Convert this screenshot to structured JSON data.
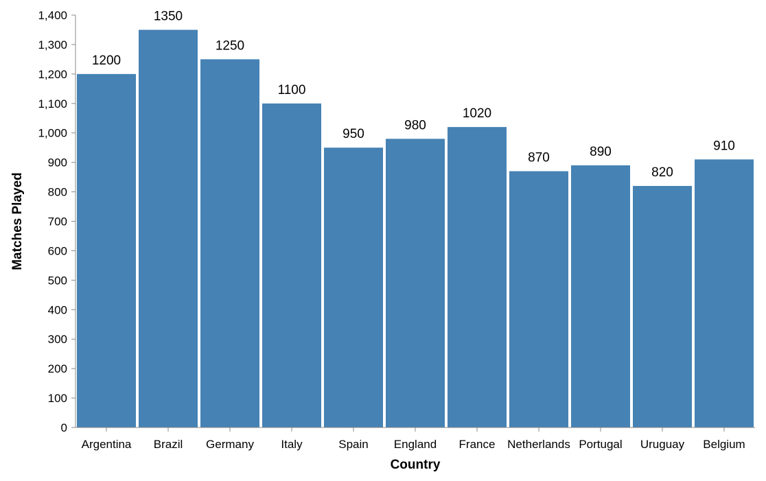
{
  "chart_data": {
    "type": "bar",
    "categories": [
      "Argentina",
      "Brazil",
      "Germany",
      "Italy",
      "Spain",
      "England",
      "France",
      "Netherlands",
      "Portugal",
      "Uruguay",
      "Belgium"
    ],
    "values": [
      1200,
      1350,
      1250,
      1100,
      950,
      980,
      1020,
      870,
      890,
      820,
      910
    ],
    "data_labels": [
      "1200",
      "1350",
      "1250",
      "1100",
      "950",
      "980",
      "1020",
      "870",
      "890",
      "820",
      "910"
    ],
    "xlabel": "Country",
    "ylabel": "Matches Played",
    "ylim": [
      0,
      1400
    ],
    "yticks": [
      0,
      100,
      200,
      300,
      400,
      500,
      600,
      700,
      800,
      900,
      1000,
      1100,
      1200,
      1300,
      1400
    ],
    "ytick_labels": [
      "0",
      "100",
      "200",
      "300",
      "400",
      "500",
      "600",
      "700",
      "800",
      "900",
      "1,000",
      "1,100",
      "1,200",
      "1,300",
      "1,400"
    ],
    "grid": false,
    "legend": "none",
    "bar_color": "#4682b4"
  }
}
